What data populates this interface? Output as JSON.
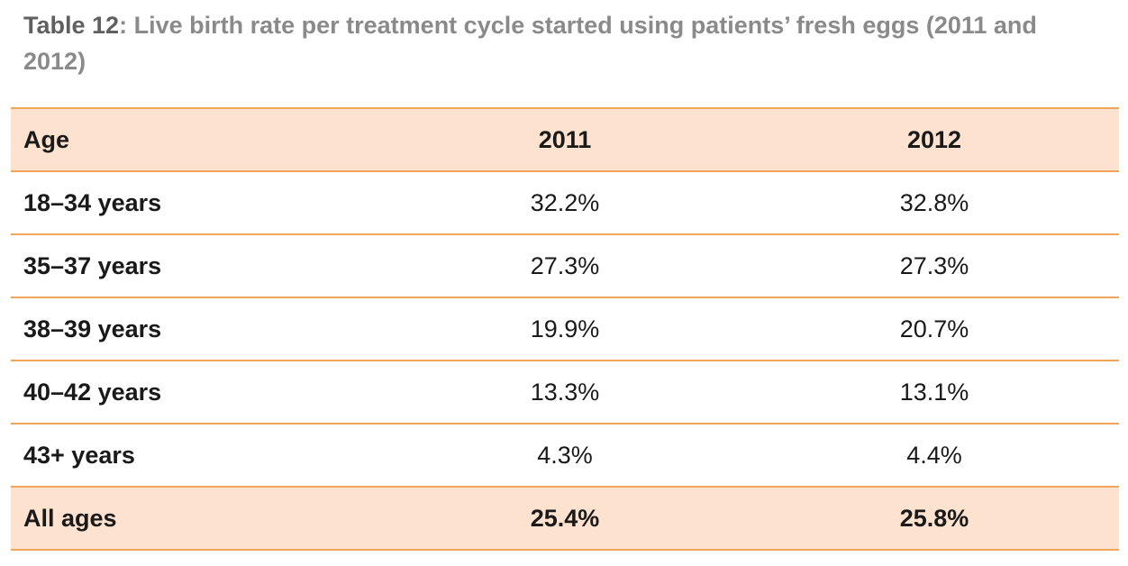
{
  "caption": {
    "label": "Table 12",
    "separator": ":",
    "text": "Live birth rate per treatment cycle started using patients’ fresh eggs (2011 and 2012)"
  },
  "table": {
    "headers": [
      "Age",
      "2011",
      "2012"
    ],
    "rows": [
      [
        "18–34 years",
        "32.2%",
        "32.8%"
      ],
      [
        "35–37 years",
        "27.3%",
        "27.3%"
      ],
      [
        "38–39 years",
        "19.9%",
        "20.7%"
      ],
      [
        "40–42 years",
        "13.3%",
        "13.1%"
      ],
      [
        "43+ years",
        "4.3%",
        "4.4%"
      ]
    ],
    "total": [
      "All ages",
      "25.4%",
      "25.8%"
    ]
  },
  "colors": {
    "accent_line": "#f0a55a",
    "header_fill": "#fde3cf",
    "caption_gray": "#8a8a8a",
    "caption_label": "#606060"
  }
}
